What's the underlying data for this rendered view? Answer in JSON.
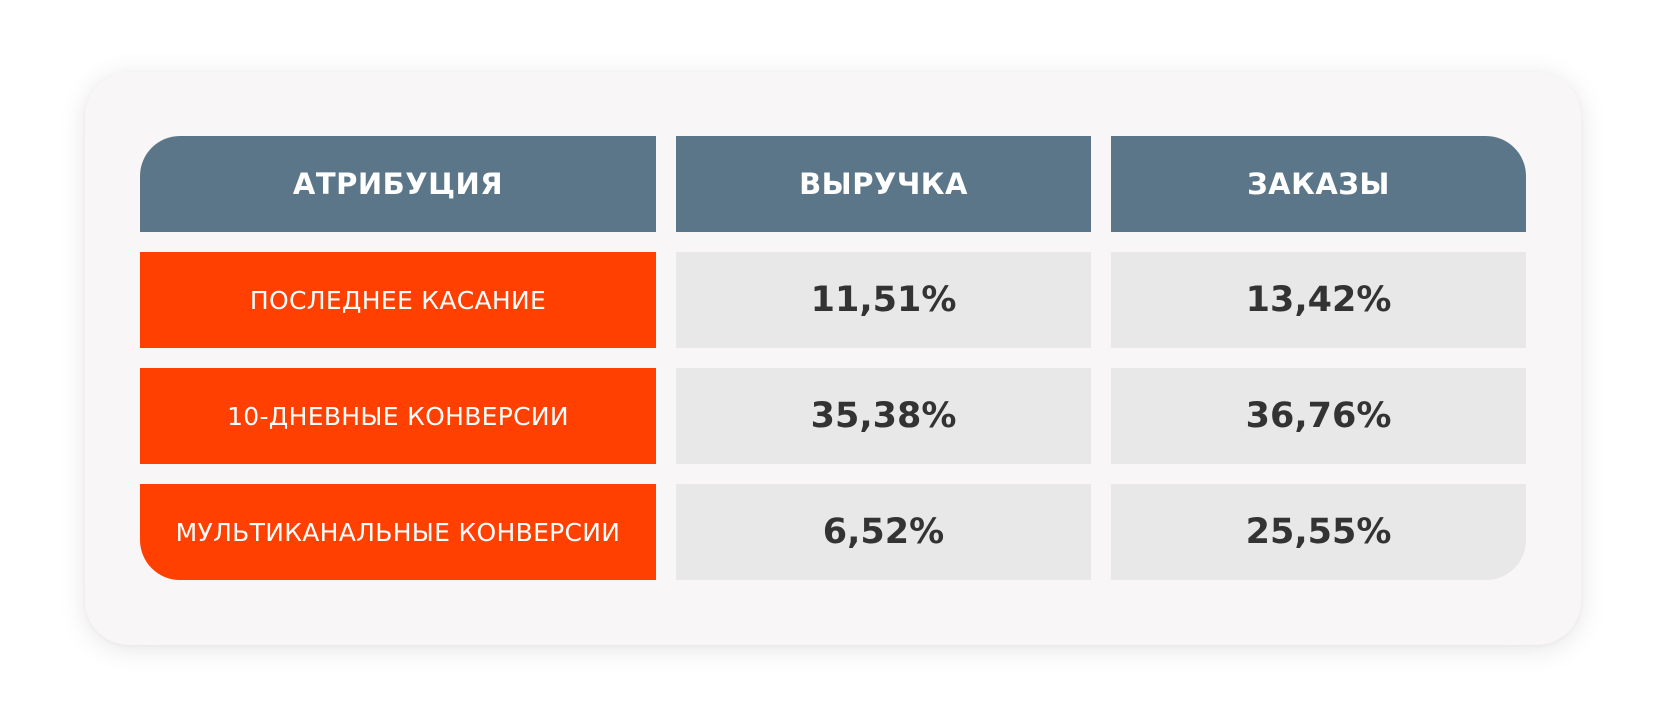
{
  "colors": {
    "header_bg": "#5b7689",
    "label_bg": "#ff4000",
    "value_bg": "#e8e8e8",
    "card_bg": "#f8f6f7",
    "value_text": "#333333"
  },
  "table": {
    "headers": [
      "АТРИБУЦИЯ",
      "ВЫРУЧКА",
      "ЗАКАЗЫ"
    ],
    "rows": [
      {
        "label": "ПОСЛЕДНЕЕ КАСАНИЕ",
        "revenue": "11,51%",
        "orders": "13,42%"
      },
      {
        "label": "10-ДНЕВНЫЕ КОНВЕРСИИ",
        "revenue": "35,38%",
        "orders": "36,76%"
      },
      {
        "label": "МУЛЬТИКАНАЛЬНЫЕ КОНВЕРСИИ",
        "revenue": "6,52%",
        "orders": "25,55%"
      }
    ]
  }
}
